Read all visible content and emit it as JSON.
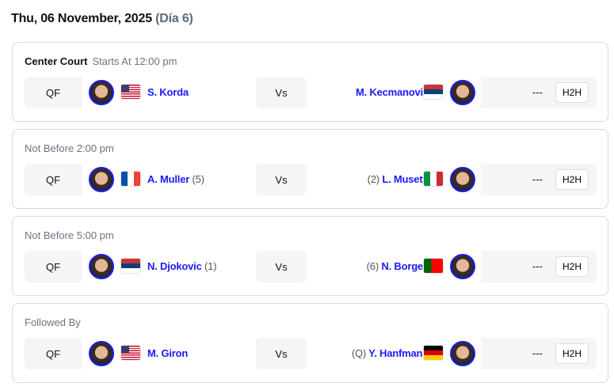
{
  "header": {
    "date": "Thu, 06 November, 2025",
    "day": "(Día 6)"
  },
  "matches": [
    {
      "court": "Center Court",
      "time": "Starts At 12:00 pm",
      "round": "QF",
      "p1": {
        "name": "S. Korda",
        "seed": "",
        "flag": "us"
      },
      "vs": "Vs",
      "p2": {
        "name": "M. Kecmanovic",
        "seed": "",
        "flag": "rs"
      },
      "score": "---",
      "h2h": "H2H"
    },
    {
      "court": "",
      "time": "Not Before 2:00 pm",
      "round": "QF",
      "p1": {
        "name": "A. Muller",
        "seed": "(5)",
        "flag": "fr"
      },
      "vs": "Vs",
      "p2": {
        "name": "L. Musetti",
        "seed": "(2)",
        "flag": "it"
      },
      "score": "---",
      "h2h": "H2H"
    },
    {
      "court": "",
      "time": "Not Before 5:00 pm",
      "round": "QF",
      "p1": {
        "name": "N. Djokovic",
        "seed": "(1)",
        "flag": "rs"
      },
      "vs": "Vs",
      "p2": {
        "name": "N. Borges",
        "seed": "(6)",
        "flag": "pt"
      },
      "score": "---",
      "h2h": "H2H"
    },
    {
      "court": "",
      "time": "Followed By",
      "round": "QF",
      "p1": {
        "name": "M. Giron",
        "seed": "",
        "flag": "us"
      },
      "vs": "Vs",
      "p2": {
        "name": "Y. Hanfmann",
        "seed": "(Q)",
        "flag": "de"
      },
      "score": "---",
      "h2h": "H2H"
    }
  ],
  "colors": {
    "link": "#1a1aff",
    "muted": "#6b7280",
    "panel": "#f4f5f6"
  }
}
